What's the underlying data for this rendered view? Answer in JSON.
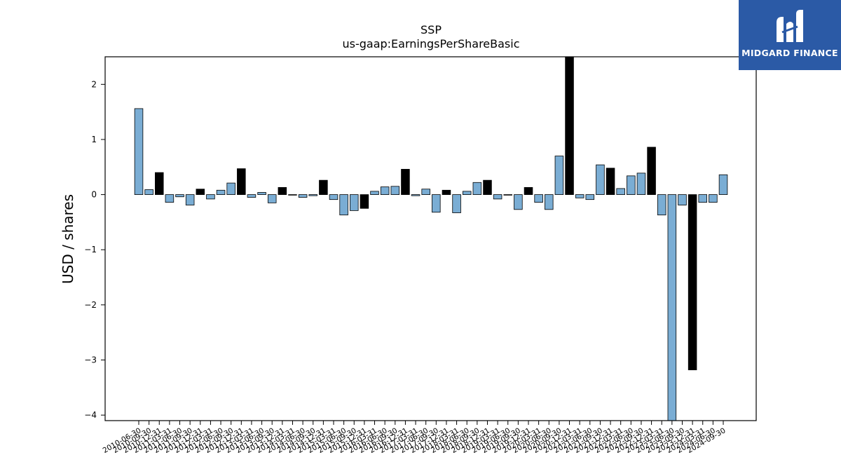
{
  "chart_data": {
    "type": "bar",
    "title": "SSP",
    "subtitle": "us-gaap:EarningsPerShareBasic",
    "ylabel": "USD / shares",
    "xlabel": "",
    "ylim": [
      -4.1,
      2.5
    ],
    "yticks": [
      -4,
      -3,
      -2,
      -1,
      0,
      1,
      2
    ],
    "grid": false,
    "categories": [
      "2010-06-30",
      "2010-09-30",
      "2010-12-31",
      "2011-03-31",
      "2011-06-30",
      "2011-09-30",
      "2011-12-31",
      "2012-03-31",
      "2012-06-30",
      "2012-09-30",
      "2012-12-31",
      "2013-03-31",
      "2013-06-30",
      "2013-09-30",
      "2013-12-31",
      "2014-03-31",
      "2014-06-30",
      "2014-09-30",
      "2014-12-31",
      "2015-03-31",
      "2015-06-30",
      "2015-09-30",
      "2015-12-31",
      "2016-03-31",
      "2016-06-30",
      "2016-09-30",
      "2016-12-31",
      "2017-03-31",
      "2017-06-30",
      "2017-09-30",
      "2017-12-31",
      "2018-03-31",
      "2018-06-30",
      "2018-09-30",
      "2018-12-31",
      "2019-03-31",
      "2019-06-30",
      "2019-09-30",
      "2019-12-31",
      "2020-03-31",
      "2020-06-30",
      "2020-09-30",
      "2020-12-31",
      "2021-03-31",
      "2021-06-30",
      "2021-09-30",
      "2021-12-31",
      "2022-03-31",
      "2022-06-30",
      "2022-09-30",
      "2022-12-31",
      "2023-03-31",
      "2023-06-30",
      "2023-09-30",
      "2023-12-31",
      "2024-03-31",
      "2024-06-30",
      "2024-09-30"
    ],
    "values": [
      1.56,
      0.09,
      0.4,
      -0.14,
      -0.04,
      -0.19,
      0.1,
      -0.08,
      0.08,
      0.21,
      0.47,
      -0.05,
      0.04,
      -0.15,
      0.13,
      -0.01,
      -0.05,
      -0.02,
      0.26,
      -0.09,
      -0.37,
      -0.29,
      -0.25,
      0.06,
      0.14,
      0.15,
      0.46,
      -0.02,
      0.1,
      -0.32,
      0.08,
      -0.33,
      0.06,
      0.22,
      0.26,
      -0.08,
      -0.01,
      -0.27,
      0.13,
      -0.14,
      -0.27,
      0.7,
      2.5,
      -0.06,
      -0.09,
      0.54,
      0.48,
      0.11,
      0.34,
      0.39,
      0.86,
      -0.37,
      -4.1,
      -0.19,
      -3.18,
      -0.14,
      -0.14,
      0.36
    ],
    "highlight_quarter": "12-31",
    "colors": {
      "bar": "#7aadd4",
      "highlight_bar": "#000000",
      "bar_edge": "#000000",
      "axes": "#000000"
    }
  },
  "brand": {
    "name": "MIDGARD FINANCE",
    "logo_icon": "midgard-logo-icon",
    "color": "#2b5aa6"
  }
}
